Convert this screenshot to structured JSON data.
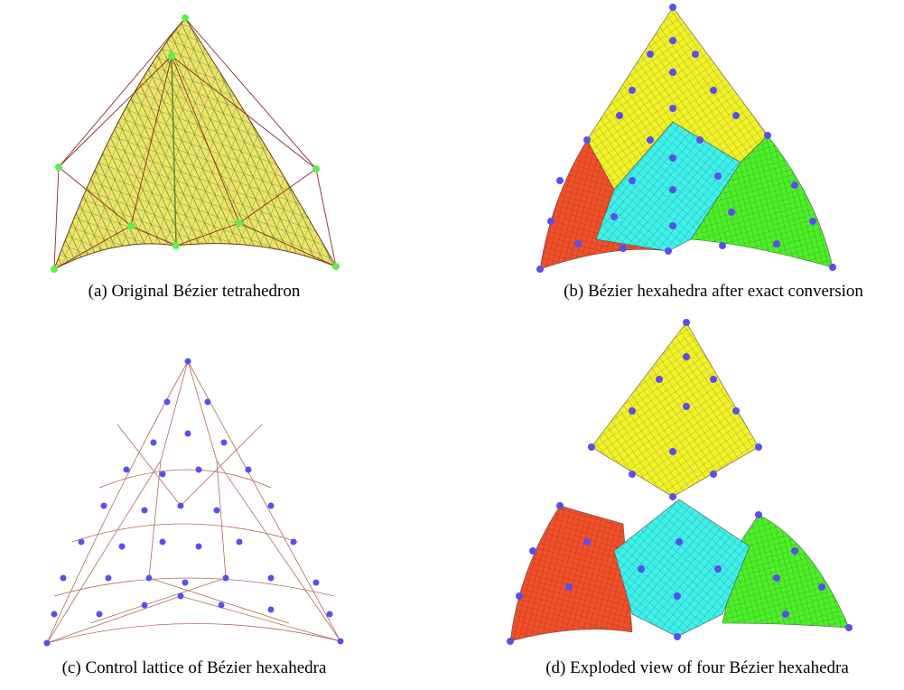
{
  "figures": [
    {
      "caption": "(a) Original Bézier tetrahedron"
    },
    {
      "caption": "(b) Bézier hexahedra after exact conversion"
    },
    {
      "caption": "(c) Control lattice of Bézier hexahedra"
    },
    {
      "caption": "(d) Exploded view of four Bézier hexahedra"
    }
  ]
}
